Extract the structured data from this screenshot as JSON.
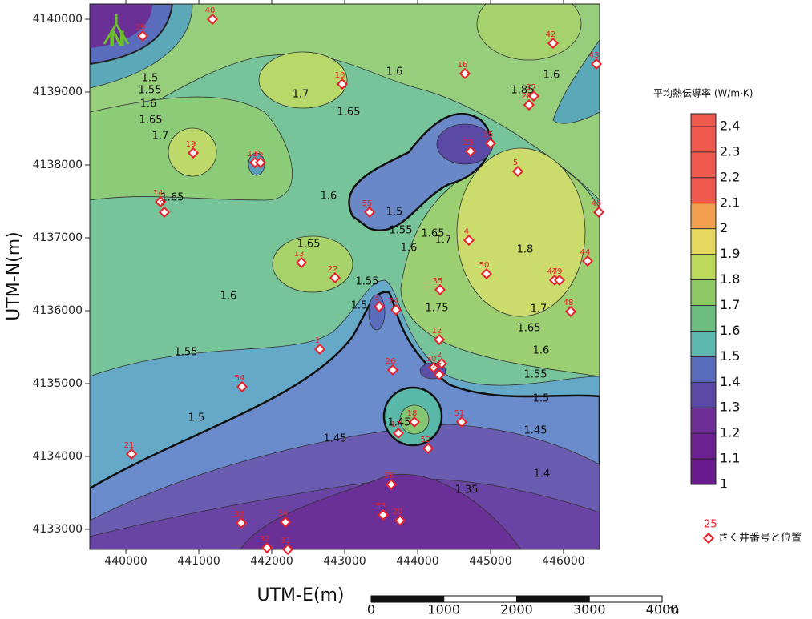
{
  "x_axis_label": "UTM-E(m)",
  "y_axis_label": "UTM-N(m)",
  "xlim": [
    439505,
    446495
  ],
  "ylim": [
    4132725,
    4140209
  ],
  "xticks": [
    440000,
    441000,
    442000,
    443000,
    444000,
    445000,
    446000
  ],
  "yticks": [
    4133000,
    4134000,
    4135000,
    4136000,
    4137000,
    4138000,
    4139000,
    4140000
  ],
  "north_label": "N",
  "contour_labels": [
    "1.5",
    "1.55",
    "1.6",
    "1.65",
    "1.7",
    "1.7",
    "1.65",
    "1.6",
    "1.6",
    "1.65",
    "1.65",
    "1.6",
    "1.55",
    "1.5",
    "1.55",
    "1.5",
    "1.45",
    "1.5",
    "1.55",
    "1.6",
    "1.65",
    "1.7",
    "1.75",
    "1.8",
    "1.7",
    "1.65",
    "1.6",
    "1.55",
    "1.5",
    "1.45",
    "1.4",
    "1.35",
    "1.85",
    "1.6",
    "1.45"
  ],
  "wells": [
    {
      "label": "39",
      "e": 440230,
      "n": 4139770
    },
    {
      "label": "40",
      "e": 441187,
      "n": 4140000
    },
    {
      "label": "42",
      "e": 445857,
      "n": 4139670
    },
    {
      "label": "16",
      "e": 444648,
      "n": 4139253
    },
    {
      "label": "43",
      "e": 446451,
      "n": 4139385
    },
    {
      "label": "10",
      "e": 442967,
      "n": 4139110
    },
    {
      "label": "37",
      "e": 445593,
      "n": 4138945
    },
    {
      "label": "28",
      "e": 445527,
      "n": 4138824
    },
    {
      "label": "19",
      "e": 440923,
      "n": 4138165
    },
    {
      "label": "11",
      "e": 441769,
      "n": 4138033
    },
    {
      "label": "36",
      "e": 441846,
      "n": 4138033
    },
    {
      "label": "29",
      "e": 444725,
      "n": 4138187
    },
    {
      "label": "15",
      "e": 445000,
      "n": 4138297
    },
    {
      "label": "5",
      "e": 445374,
      "n": 4137912
    },
    {
      "label": "55",
      "e": 443341,
      "n": 4137352
    },
    {
      "label": "14",
      "e": 440473,
      "n": 4137495
    },
    {
      "label": "9",
      "e": 440527,
      "n": 4137352
    },
    {
      "label": "45",
      "e": 446484,
      "n": 4137352
    },
    {
      "label": "4",
      "e": 444703,
      "n": 4136967
    },
    {
      "label": "13",
      "e": 442407,
      "n": 4136659
    },
    {
      "label": "22",
      "e": 442868,
      "n": 4136451
    },
    {
      "label": "50",
      "e": 444945,
      "n": 4136505
    },
    {
      "label": "44",
      "e": 446330,
      "n": 4136681
    },
    {
      "label": "47",
      "e": 445879,
      "n": 4136418
    },
    {
      "label": "49",
      "e": 445945,
      "n": 4136418
    },
    {
      "label": "35",
      "e": 444308,
      "n": 4136286
    },
    {
      "label": "3",
      "e": 443473,
      "n": 4136055
    },
    {
      "label": "24",
      "e": 443703,
      "n": 4136011
    },
    {
      "label": "48",
      "e": 446099,
      "n": 4135989
    },
    {
      "label": "12",
      "e": 444297,
      "n": 4135604
    },
    {
      "label": "1",
      "e": 442659,
      "n": 4135473
    },
    {
      "label": "26",
      "e": 443659,
      "n": 4135187
    },
    {
      "label": "30",
      "e": 444220,
      "n": 4135220
    },
    {
      "label": "2",
      "e": 444330,
      "n": 4135275
    },
    {
      "label": "27",
      "e": 444297,
      "n": 4135121
    },
    {
      "label": "54",
      "e": 441593,
      "n": 4134956
    },
    {
      "label": "18",
      "e": 443956,
      "n": 4134473
    },
    {
      "label": "51",
      "e": 444604,
      "n": 4134473
    },
    {
      "label": "17",
      "e": 443736,
      "n": 4134319
    },
    {
      "label": "52",
      "e": 444143,
      "n": 4134110
    },
    {
      "label": "21",
      "e": 440077,
      "n": 4134033
    },
    {
      "label": "38",
      "e": 443637,
      "n": 4133615
    },
    {
      "label": "33",
      "e": 441582,
      "n": 4133088
    },
    {
      "label": "34",
      "e": 442187,
      "n": 4133099
    },
    {
      "label": "53",
      "e": 443527,
      "n": 4133198
    },
    {
      "label": "20",
      "e": 443758,
      "n": 4133121
    },
    {
      "label": "32",
      "e": 441934,
      "n": 4132747
    },
    {
      "label": "31",
      "e": 442220,
      "n": 4132725
    }
  ],
  "colorbar": {
    "title": "平均熱伝導率 (W/m·K)",
    "ticks": [
      1,
      1.1,
      1.2,
      1.3,
      1.4,
      1.5,
      1.6,
      1.7,
      1.8,
      1.9,
      2,
      2.1,
      2.2,
      2.3,
      2.4
    ],
    "lim": [
      1,
      2.45
    ],
    "colors": [
      "#6a1c8e",
      "#6c2290",
      "#6e3096",
      "#5a4aa6",
      "#5a6cbc",
      "#5eb8b0",
      "#6cbc80",
      "#8ec864",
      "#bcd95a",
      "#e6d860",
      "#f2a050",
      "#f25a50",
      "#f25a50",
      "#f25a50",
      "#f25a50"
    ]
  },
  "legend": {
    "sample_label": "25",
    "text": "さく井番号と位置"
  },
  "scalebar": {
    "ticks": [
      0,
      1000,
      2000,
      3000,
      4000
    ],
    "unit": "m"
  }
}
